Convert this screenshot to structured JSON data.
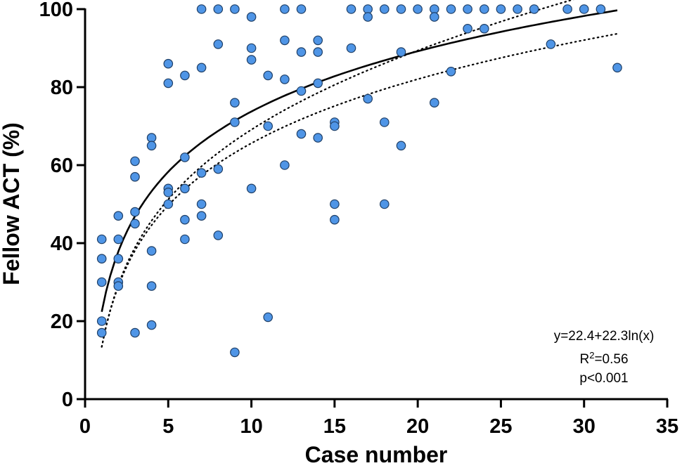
{
  "chart_data": {
    "type": "scatter",
    "xlabel": "Case number",
    "ylabel": "Fellow ACT (%)",
    "xlim": [
      0,
      35
    ],
    "ylim": [
      0,
      100
    ],
    "xticks": [
      "0",
      "5",
      "10",
      "15",
      "20",
      "25",
      "30",
      "35"
    ],
    "yticks": [
      "0",
      "20",
      "40",
      "60",
      "80",
      "100"
    ],
    "grid": false,
    "colors": {
      "points": "#4f95e6",
      "point_edge": "#1f3f66",
      "fit": "#000000"
    },
    "series": [
      {
        "points": [
          [
            1,
            41
          ],
          [
            1,
            36
          ],
          [
            1,
            30
          ],
          [
            1,
            20
          ],
          [
            1,
            17
          ],
          [
            2,
            47
          ],
          [
            2,
            41
          ],
          [
            2,
            36
          ],
          [
            2,
            30
          ],
          [
            2,
            29
          ],
          [
            3,
            61
          ],
          [
            3,
            57
          ],
          [
            3,
            48
          ],
          [
            3,
            45
          ],
          [
            3,
            17
          ],
          [
            4,
            67
          ],
          [
            4,
            65
          ],
          [
            4,
            38
          ],
          [
            4,
            29
          ],
          [
            4,
            19
          ],
          [
            5,
            86
          ],
          [
            5,
            81
          ],
          [
            5,
            54
          ],
          [
            5,
            53
          ],
          [
            5,
            50
          ],
          [
            6,
            83
          ],
          [
            6,
            62
          ],
          [
            6,
            54
          ],
          [
            6,
            46
          ],
          [
            6,
            41
          ],
          [
            7,
            100
          ],
          [
            7,
            85
          ],
          [
            7,
            58
          ],
          [
            7,
            50
          ],
          [
            7,
            47
          ],
          [
            8,
            100
          ],
          [
            8,
            91
          ],
          [
            8,
            59
          ],
          [
            8,
            42
          ],
          [
            9,
            100
          ],
          [
            9,
            76
          ],
          [
            9,
            71
          ],
          [
            9,
            12
          ],
          [
            10,
            98
          ],
          [
            10,
            90
          ],
          [
            10,
            87
          ],
          [
            10,
            54
          ],
          [
            11,
            83
          ],
          [
            11,
            70
          ],
          [
            11,
            21
          ],
          [
            12,
            100
          ],
          [
            12,
            92
          ],
          [
            12,
            82
          ],
          [
            12,
            60
          ],
          [
            13,
            100
          ],
          [
            13,
            89
          ],
          [
            13,
            79
          ],
          [
            13,
            68
          ],
          [
            14,
            92
          ],
          [
            14,
            89
          ],
          [
            14,
            81
          ],
          [
            14,
            67
          ],
          [
            15,
            71
          ],
          [
            15,
            70
          ],
          [
            15,
            50
          ],
          [
            15,
            46
          ],
          [
            16,
            100
          ],
          [
            16,
            90
          ],
          [
            17,
            100
          ],
          [
            17,
            98
          ],
          [
            17,
            77
          ],
          [
            18,
            100
          ],
          [
            18,
            71
          ],
          [
            18,
            50
          ],
          [
            19,
            100
          ],
          [
            19,
            89
          ],
          [
            19,
            65
          ],
          [
            20,
            100
          ],
          [
            21,
            100
          ],
          [
            21,
            98
          ],
          [
            21,
            76
          ],
          [
            22,
            100
          ],
          [
            22,
            84
          ],
          [
            23,
            100
          ],
          [
            23,
            95
          ],
          [
            24,
            100
          ],
          [
            24,
            95
          ],
          [
            25,
            100
          ],
          [
            26,
            100
          ],
          [
            27,
            100
          ],
          [
            28,
            91
          ],
          [
            29,
            100
          ],
          [
            30,
            100
          ],
          [
            31,
            100
          ],
          [
            32,
            85
          ]
        ]
      }
    ],
    "fit": {
      "type": "logarithmic",
      "intercept": 22.4,
      "slope": 22.3,
      "x_range": [
        1,
        32
      ],
      "confidence_band": {
        "style": "dotted",
        "lower_offset": [
          -9,
          -6
        ],
        "upper_offset": [
          -9,
          6
        ]
      }
    },
    "annotation": {
      "equation": "y=22.4+22.3ln(x)",
      "r2_prefix": "R",
      "r2_sup": "2",
      "r2_value": "=0.56",
      "p_value": "p<0.001"
    }
  }
}
